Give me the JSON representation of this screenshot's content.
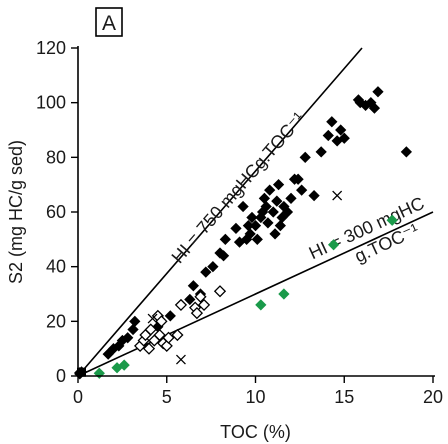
{
  "chart_data": {
    "type": "scatter",
    "panel_label": "A",
    "xlabel": "TOC (%)",
    "ylabel": "S2 (mg HC/g sed)",
    "xlim": [
      0,
      20
    ],
    "ylim": [
      0,
      120
    ],
    "xticks": [
      "0",
      "5",
      "10",
      "15",
      "20"
    ],
    "yticks": [
      "0",
      "20",
      "40",
      "60",
      "80",
      "100",
      "120"
    ],
    "grid": false,
    "legend": "none",
    "reference_lines": [
      {
        "label": "HI = 750 mgHCg.TOC⁻¹",
        "slope": 7.5
      },
      {
        "label_line1": "HI = 300 mgHC",
        "label_line2": "g.TOC⁻¹",
        "slope": 3.0
      }
    ],
    "colors": {
      "filled_black": "#000000",
      "green": "#1a9a4a",
      "open": "#000000",
      "cross": "#000000"
    },
    "series": [
      {
        "marker": "filled-diamond",
        "color": "#000000",
        "points": [
          [
            0.1,
            1.2
          ],
          [
            0.2,
            1.5
          ],
          [
            0.1,
            0.8
          ],
          [
            1.7,
            8
          ],
          [
            2.0,
            10
          ],
          [
            2.3,
            11
          ],
          [
            2.5,
            13
          ],
          [
            2.8,
            14
          ],
          [
            3.1,
            17
          ],
          [
            3.2,
            20
          ],
          [
            4.5,
            18
          ],
          [
            5.2,
            22
          ],
          [
            6.3,
            28
          ],
          [
            6.5,
            33
          ],
          [
            6.9,
            30
          ],
          [
            7.2,
            38
          ],
          [
            7.6,
            40
          ],
          [
            8.0,
            45
          ],
          [
            8.2,
            44
          ],
          [
            8.3,
            50
          ],
          [
            8.9,
            54
          ],
          [
            9.1,
            49
          ],
          [
            9.3,
            62
          ],
          [
            9.5,
            50
          ],
          [
            9.6,
            55
          ],
          [
            9.7,
            52
          ],
          [
            9.8,
            58
          ],
          [
            10.0,
            55
          ],
          [
            10.1,
            50
          ],
          [
            10.3,
            58
          ],
          [
            10.4,
            60
          ],
          [
            10.5,
            65
          ],
          [
            10.6,
            62
          ],
          [
            10.7,
            56
          ],
          [
            10.8,
            68
          ],
          [
            11.0,
            60
          ],
          [
            11.1,
            52
          ],
          [
            11.2,
            64
          ],
          [
            11.3,
            70
          ],
          [
            11.4,
            55
          ],
          [
            11.5,
            58
          ],
          [
            11.6,
            62
          ],
          [
            11.8,
            60
          ],
          [
            12.0,
            65
          ],
          [
            12.2,
            72
          ],
          [
            12.4,
            72
          ],
          [
            12.6,
            68
          ],
          [
            12.8,
            80
          ],
          [
            13.3,
            66
          ],
          [
            13.7,
            82
          ],
          [
            14.1,
            88
          ],
          [
            14.3,
            93
          ],
          [
            14.6,
            86
          ],
          [
            14.8,
            90
          ],
          [
            15.0,
            87
          ],
          [
            15.8,
            101
          ],
          [
            15.9,
            100
          ],
          [
            16.2,
            99
          ],
          [
            16.5,
            100
          ],
          [
            16.7,
            98
          ],
          [
            16.9,
            104
          ],
          [
            18.5,
            82
          ]
        ]
      },
      {
        "marker": "open-diamond",
        "color": "#000000",
        "points": [
          [
            3.5,
            11
          ],
          [
            3.7,
            13
          ],
          [
            3.8,
            15
          ],
          [
            4.0,
            10
          ],
          [
            4.1,
            17
          ],
          [
            4.3,
            13
          ],
          [
            4.5,
            22
          ],
          [
            4.6,
            15
          ],
          [
            4.7,
            20
          ],
          [
            4.8,
            12
          ],
          [
            5.0,
            11
          ],
          [
            5.1,
            14
          ],
          [
            5.6,
            15
          ],
          [
            5.8,
            26
          ],
          [
            6.6,
            25
          ],
          [
            6.7,
            23
          ],
          [
            6.9,
            29
          ],
          [
            7.1,
            26
          ],
          [
            8.0,
            31
          ]
        ]
      },
      {
        "marker": "cross",
        "color": "#000000",
        "points": [
          [
            4.2,
            21
          ],
          [
            5.8,
            6
          ],
          [
            14.6,
            66
          ]
        ]
      },
      {
        "marker": "filled-diamond",
        "color": "#1a9a4a",
        "points": [
          [
            1.2,
            1
          ],
          [
            2.2,
            3
          ],
          [
            2.6,
            4
          ],
          [
            10.3,
            26
          ],
          [
            11.6,
            30
          ],
          [
            14.4,
            48
          ],
          [
            17.7,
            57
          ]
        ]
      }
    ]
  }
}
